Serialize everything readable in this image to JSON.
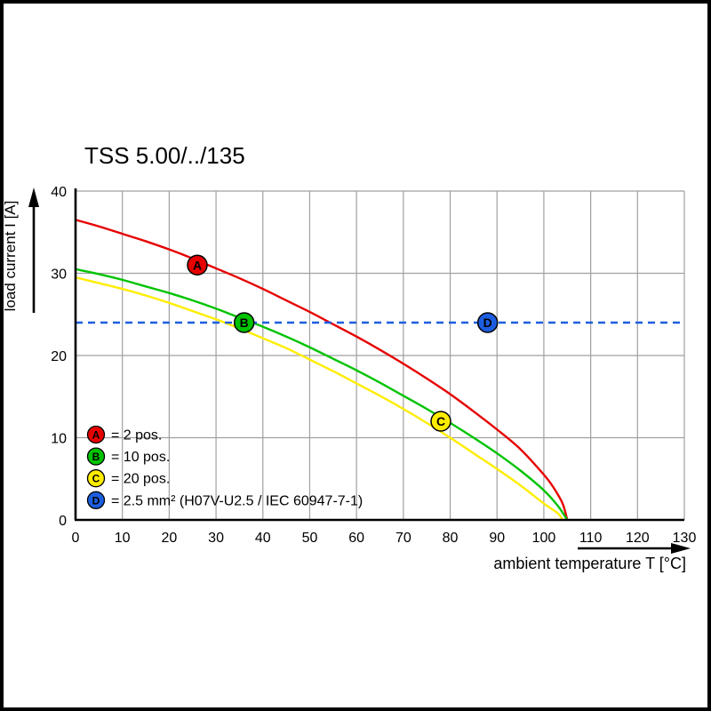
{
  "page": {
    "background": "#ffffff",
    "frame_color": "#000000"
  },
  "chart_data": {
    "type": "line",
    "title": "TSS 5.00/../135",
    "xlabel": "ambient temperature T [°C]",
    "ylabel": "load current I [A]",
    "xlim": [
      0,
      130
    ],
    "ylim": [
      0,
      40
    ],
    "xticks": [
      0,
      10,
      20,
      30,
      40,
      50,
      60,
      70,
      80,
      90,
      100,
      110,
      120,
      130
    ],
    "yticks": [
      0,
      10,
      20,
      30,
      40
    ],
    "grid": true,
    "grid_color": "#a0a0a0",
    "axis_color": "#000000",
    "legend_position": "bottom-left-inside",
    "series": [
      {
        "name": "A",
        "legend_label": "= 2 pos.",
        "color": "#e60000",
        "style": "solid",
        "points": [
          [
            0,
            36.5
          ],
          [
            5,
            35.7
          ],
          [
            10,
            34.8
          ],
          [
            15,
            33.9
          ],
          [
            20,
            32.9
          ],
          [
            25,
            31.8
          ],
          [
            30,
            30.6
          ],
          [
            35,
            29.4
          ],
          [
            40,
            28.1
          ],
          [
            45,
            26.7
          ],
          [
            50,
            25.3
          ],
          [
            55,
            23.8
          ],
          [
            60,
            22.3
          ],
          [
            65,
            20.7
          ],
          [
            70,
            19.0
          ],
          [
            75,
            17.2
          ],
          [
            80,
            15.3
          ],
          [
            85,
            13.2
          ],
          [
            90,
            11.0
          ],
          [
            95,
            8.6
          ],
          [
            100,
            5.5
          ],
          [
            102,
            4.0
          ],
          [
            104,
            2.0
          ],
          [
            105,
            0
          ]
        ],
        "marker": {
          "x": 26,
          "y": 31,
          "text_color": "#ffffff"
        }
      },
      {
        "name": "B",
        "legend_label": "= 10 pos.",
        "color": "#00c300",
        "style": "solid",
        "points": [
          [
            0,
            30.5
          ],
          [
            5,
            29.9
          ],
          [
            10,
            29.2
          ],
          [
            15,
            28.4
          ],
          [
            20,
            27.6
          ],
          [
            25,
            26.7
          ],
          [
            30,
            25.7
          ],
          [
            35,
            24.6
          ],
          [
            40,
            23.5
          ],
          [
            45,
            22.3
          ],
          [
            50,
            21.0
          ],
          [
            55,
            19.6
          ],
          [
            60,
            18.2
          ],
          [
            65,
            16.7
          ],
          [
            70,
            15.1
          ],
          [
            75,
            13.5
          ],
          [
            80,
            11.8
          ],
          [
            85,
            10.0
          ],
          [
            90,
            8.1
          ],
          [
            95,
            6.0
          ],
          [
            100,
            3.6
          ],
          [
            103,
            1.7
          ],
          [
            105,
            0
          ]
        ],
        "marker": {
          "x": 36,
          "y": 24,
          "text_color": "#ffffff"
        }
      },
      {
        "name": "C",
        "legend_label": "= 20 pos.",
        "color": "#ffed00",
        "style": "solid",
        "points": [
          [
            0,
            29.5
          ],
          [
            5,
            28.8
          ],
          [
            10,
            28.1
          ],
          [
            15,
            27.3
          ],
          [
            20,
            26.4
          ],
          [
            25,
            25.4
          ],
          [
            30,
            24.4
          ],
          [
            35,
            23.3
          ],
          [
            40,
            22.1
          ],
          [
            45,
            20.9
          ],
          [
            50,
            19.5
          ],
          [
            55,
            18.1
          ],
          [
            60,
            16.6
          ],
          [
            65,
            15.1
          ],
          [
            70,
            13.5
          ],
          [
            75,
            11.8
          ],
          [
            80,
            10.0
          ],
          [
            85,
            8.1
          ],
          [
            90,
            6.2
          ],
          [
            95,
            4.2
          ],
          [
            100,
            2.0
          ],
          [
            103,
            0.8
          ],
          [
            104,
            0
          ]
        ],
        "marker": {
          "x": 78,
          "y": 12,
          "text_color": "#000000"
        }
      },
      {
        "name": "D",
        "legend_label": "= 2.5 mm² (H07V-U2.5 / IEC 60947-7-1)",
        "color": "#1c5ee0",
        "style": "dashed",
        "points": [
          [
            0,
            24
          ],
          [
            130,
            24
          ]
        ],
        "marker": {
          "x": 88,
          "y": 24,
          "text_color": "#ffffff"
        }
      }
    ]
  }
}
